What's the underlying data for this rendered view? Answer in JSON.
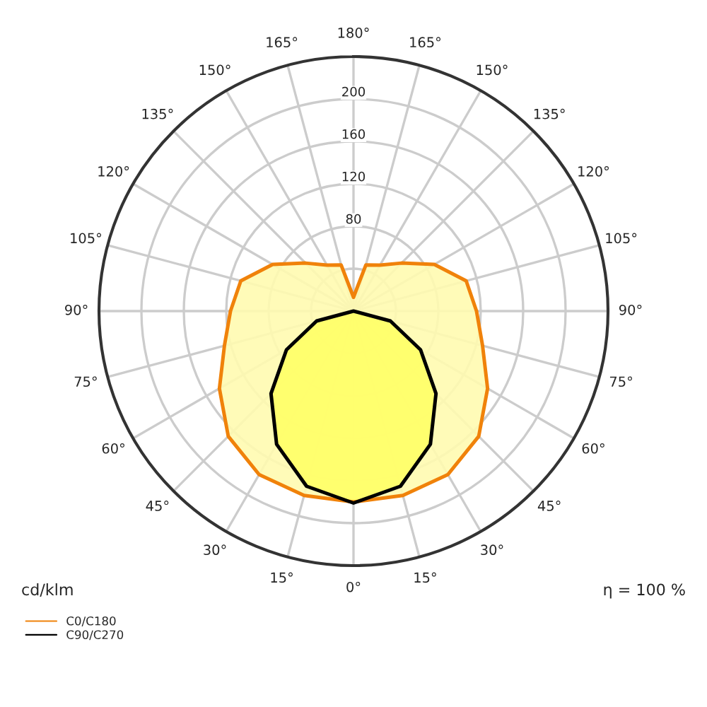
{
  "chart_data": {
    "type": "radar",
    "categories": [
      "180°",
      "165°",
      "150°",
      "135°",
      "120°",
      "105°",
      "90°",
      "75°",
      "60°",
      "45°",
      "30°",
      "15°",
      "0°",
      "15°",
      "30°",
      "45°",
      "60°",
      "75°",
      "90°",
      "105°",
      "120°",
      "135°",
      "150°",
      "165°"
    ],
    "series": [
      {
        "name": "C0/C180",
        "color": "#f0820a",
        "values": [
          13,
          45,
          50,
          64,
          88,
          110,
          116,
          126,
          146,
          167,
          178,
          180,
          180,
          180,
          178,
          167,
          146,
          126,
          116,
          110,
          88,
          64,
          50,
          45
        ]
      },
      {
        "name": "C90/C270",
        "color": "#000000",
        "values": [
          0,
          0,
          0,
          0,
          0,
          0,
          0,
          36,
          73,
          110,
          145,
          171,
          181,
          171,
          145,
          110,
          73,
          36,
          0,
          0,
          0,
          0,
          0,
          0
        ]
      }
    ],
    "ylim": [
      0,
      240
    ],
    "yticks": [
      80,
      120,
      160,
      200
    ],
    "grid": true,
    "legend": "bottom left",
    "marker": "none",
    "annotations": [
      "cd/klm",
      "η = 100 %"
    ]
  }
}
